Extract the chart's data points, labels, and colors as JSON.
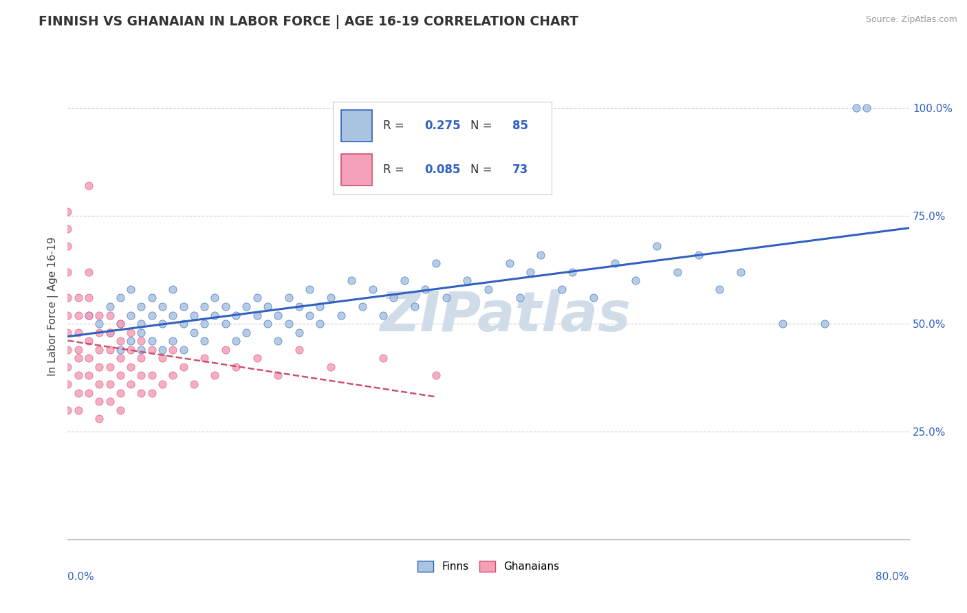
{
  "title": "FINNISH VS GHANAIAN IN LABOR FORCE | AGE 16-19 CORRELATION CHART",
  "source": "Source: ZipAtlas.com",
  "ylabel": "In Labor Force | Age 16-19",
  "xlim": [
    0.0,
    0.8
  ],
  "ylim": [
    0.0,
    1.08
  ],
  "yticks": [
    0.0,
    0.25,
    0.5,
    0.75,
    1.0
  ],
  "ytick_labels": [
    "",
    "25.0%",
    "50.0%",
    "75.0%",
    "100.0%"
  ],
  "finns_R": "0.275",
  "finns_N": "85",
  "ghanaians_R": "0.085",
  "ghanaians_N": "73",
  "finns_color": "#a8c4e0",
  "ghanaians_color": "#f4a0b8",
  "trend_finns_color": "#3060c0",
  "trend_ghana_color": "#d05070",
  "legend_text_color": "#3060c0",
  "watermark": "ZIPatlas",
  "watermark_color": "#d0dce8",
  "finns_scatter": [
    [
      0.02,
      0.52
    ],
    [
      0.03,
      0.5
    ],
    [
      0.04,
      0.54
    ],
    [
      0.04,
      0.48
    ],
    [
      0.05,
      0.5
    ],
    [
      0.05,
      0.44
    ],
    [
      0.05,
      0.56
    ],
    [
      0.06,
      0.52
    ],
    [
      0.06,
      0.46
    ],
    [
      0.06,
      0.58
    ],
    [
      0.07,
      0.5
    ],
    [
      0.07,
      0.44
    ],
    [
      0.07,
      0.54
    ],
    [
      0.07,
      0.48
    ],
    [
      0.08,
      0.52
    ],
    [
      0.08,
      0.46
    ],
    [
      0.08,
      0.56
    ],
    [
      0.09,
      0.5
    ],
    [
      0.09,
      0.54
    ],
    [
      0.09,
      0.44
    ],
    [
      0.1,
      0.52
    ],
    [
      0.1,
      0.46
    ],
    [
      0.1,
      0.58
    ],
    [
      0.11,
      0.5
    ],
    [
      0.11,
      0.54
    ],
    [
      0.11,
      0.44
    ],
    [
      0.12,
      0.52
    ],
    [
      0.12,
      0.48
    ],
    [
      0.13,
      0.54
    ],
    [
      0.13,
      0.46
    ],
    [
      0.13,
      0.5
    ],
    [
      0.14,
      0.52
    ],
    [
      0.14,
      0.56
    ],
    [
      0.15,
      0.5
    ],
    [
      0.15,
      0.54
    ],
    [
      0.16,
      0.52
    ],
    [
      0.16,
      0.46
    ],
    [
      0.17,
      0.54
    ],
    [
      0.17,
      0.48
    ],
    [
      0.18,
      0.52
    ],
    [
      0.18,
      0.56
    ],
    [
      0.19,
      0.5
    ],
    [
      0.19,
      0.54
    ],
    [
      0.2,
      0.52
    ],
    [
      0.2,
      0.46
    ],
    [
      0.21,
      0.56
    ],
    [
      0.21,
      0.5
    ],
    [
      0.22,
      0.54
    ],
    [
      0.22,
      0.48
    ],
    [
      0.23,
      0.52
    ],
    [
      0.23,
      0.58
    ],
    [
      0.24,
      0.5
    ],
    [
      0.24,
      0.54
    ],
    [
      0.25,
      0.56
    ],
    [
      0.26,
      0.52
    ],
    [
      0.27,
      0.6
    ],
    [
      0.28,
      0.54
    ],
    [
      0.29,
      0.58
    ],
    [
      0.3,
      0.52
    ],
    [
      0.31,
      0.56
    ],
    [
      0.32,
      0.6
    ],
    [
      0.33,
      0.54
    ],
    [
      0.34,
      0.58
    ],
    [
      0.35,
      0.64
    ],
    [
      0.36,
      0.56
    ],
    [
      0.38,
      0.6
    ],
    [
      0.4,
      0.58
    ],
    [
      0.42,
      0.64
    ],
    [
      0.43,
      0.56
    ],
    [
      0.44,
      0.62
    ],
    [
      0.45,
      0.66
    ],
    [
      0.47,
      0.58
    ],
    [
      0.48,
      0.62
    ],
    [
      0.5,
      0.56
    ],
    [
      0.52,
      0.64
    ],
    [
      0.54,
      0.6
    ],
    [
      0.56,
      0.68
    ],
    [
      0.58,
      0.62
    ],
    [
      0.6,
      0.66
    ],
    [
      0.62,
      0.58
    ],
    [
      0.64,
      0.62
    ],
    [
      0.68,
      0.5
    ],
    [
      0.72,
      0.5
    ],
    [
      0.75,
      1.0
    ],
    [
      0.76,
      1.0
    ]
  ],
  "ghanaians_scatter": [
    [
      0.0,
      0.4
    ],
    [
      0.0,
      0.44
    ],
    [
      0.0,
      0.48
    ],
    [
      0.0,
      0.52
    ],
    [
      0.0,
      0.56
    ],
    [
      0.0,
      0.62
    ],
    [
      0.0,
      0.68
    ],
    [
      0.0,
      0.72
    ],
    [
      0.0,
      0.76
    ],
    [
      0.0,
      0.36
    ],
    [
      0.0,
      0.3
    ],
    [
      0.01,
      0.44
    ],
    [
      0.01,
      0.48
    ],
    [
      0.01,
      0.52
    ],
    [
      0.01,
      0.56
    ],
    [
      0.01,
      0.42
    ],
    [
      0.01,
      0.38
    ],
    [
      0.01,
      0.34
    ],
    [
      0.01,
      0.3
    ],
    [
      0.02,
      0.46
    ],
    [
      0.02,
      0.42
    ],
    [
      0.02,
      0.38
    ],
    [
      0.02,
      0.34
    ],
    [
      0.02,
      0.52
    ],
    [
      0.02,
      0.56
    ],
    [
      0.02,
      0.82
    ],
    [
      0.02,
      0.62
    ],
    [
      0.03,
      0.44
    ],
    [
      0.03,
      0.48
    ],
    [
      0.03,
      0.4
    ],
    [
      0.03,
      0.36
    ],
    [
      0.03,
      0.32
    ],
    [
      0.03,
      0.52
    ],
    [
      0.03,
      0.28
    ],
    [
      0.04,
      0.44
    ],
    [
      0.04,
      0.4
    ],
    [
      0.04,
      0.36
    ],
    [
      0.04,
      0.32
    ],
    [
      0.04,
      0.48
    ],
    [
      0.04,
      0.52
    ],
    [
      0.05,
      0.42
    ],
    [
      0.05,
      0.38
    ],
    [
      0.05,
      0.34
    ],
    [
      0.05,
      0.46
    ],
    [
      0.05,
      0.5
    ],
    [
      0.05,
      0.3
    ],
    [
      0.06,
      0.4
    ],
    [
      0.06,
      0.36
    ],
    [
      0.06,
      0.44
    ],
    [
      0.06,
      0.48
    ],
    [
      0.07,
      0.38
    ],
    [
      0.07,
      0.42
    ],
    [
      0.07,
      0.34
    ],
    [
      0.07,
      0.46
    ],
    [
      0.08,
      0.38
    ],
    [
      0.08,
      0.44
    ],
    [
      0.08,
      0.34
    ],
    [
      0.09,
      0.42
    ],
    [
      0.09,
      0.36
    ],
    [
      0.1,
      0.38
    ],
    [
      0.1,
      0.44
    ],
    [
      0.11,
      0.4
    ],
    [
      0.12,
      0.36
    ],
    [
      0.13,
      0.42
    ],
    [
      0.14,
      0.38
    ],
    [
      0.15,
      0.44
    ],
    [
      0.16,
      0.4
    ],
    [
      0.18,
      0.42
    ],
    [
      0.2,
      0.38
    ],
    [
      0.22,
      0.44
    ],
    [
      0.25,
      0.4
    ],
    [
      0.3,
      0.42
    ],
    [
      0.35,
      0.38
    ]
  ]
}
